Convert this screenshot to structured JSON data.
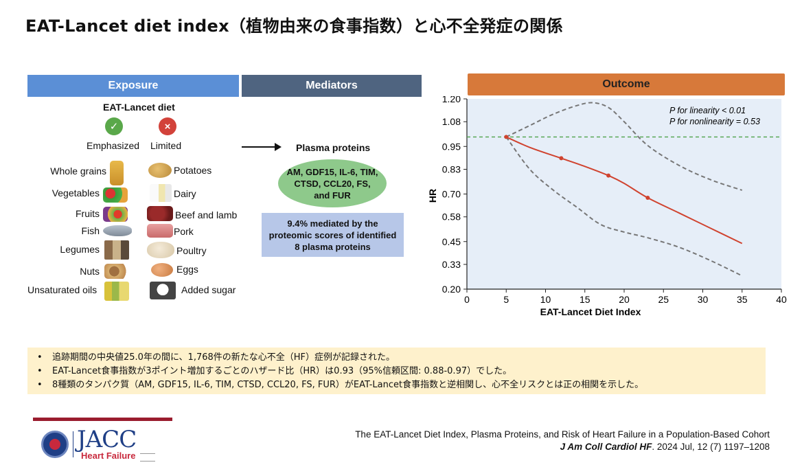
{
  "title": "EAT-Lancet diet index（植物由来の食事指数）と心不全発症の関係",
  "exposure": {
    "header": "Exposure",
    "diet_title": "EAT-Lancet diet",
    "emphasized_label": "Emphasized",
    "limited_label": "Limited",
    "emphasized": [
      "Whole grains",
      "Vegetables",
      "Fruits",
      "Fish",
      "Legumes",
      "Nuts",
      "Unsaturated oils"
    ],
    "limited": [
      "Potatoes",
      "Dairy",
      "Beef and lamb",
      "Pork",
      "Poultry",
      "Eggs",
      "Added sugar"
    ]
  },
  "mediators": {
    "header": "Mediators",
    "plasma_title": "Plasma proteins",
    "proteins_text": "AM, GDF15, IL-6, TIM, CTSD, CCL20, FS, and FUR",
    "mediated_text": "9.4% mediated by the proteomic scores of identified 8 plasma proteins"
  },
  "outcome": {
    "header": "Outcome"
  },
  "chart_data": {
    "type": "line",
    "xlabel": "EAT-Lancet Diet Index",
    "ylabel": "HR",
    "xlim": [
      0,
      40
    ],
    "ylim": [
      0.2,
      1.2
    ],
    "xticks": [
      0,
      5,
      10,
      15,
      20,
      25,
      30,
      35,
      40
    ],
    "yticks": [
      "1.20",
      "1.08",
      "0.95",
      "0.83",
      "0.70",
      "0.58",
      "0.45",
      "0.33",
      "0.20"
    ],
    "reference_line": 1.0,
    "annotations": [
      "P for linearity < 0.01",
      "P for nonlinearity = 0.53"
    ],
    "series": [
      {
        "x": [
          5,
          8,
          12,
          15,
          18,
          20,
          23,
          27,
          31,
          35
        ],
        "y": [
          1.0,
          0.945,
          0.888,
          0.845,
          0.797,
          0.756,
          0.68,
          0.6,
          0.52,
          0.44
        ],
        "markers_x": [
          5,
          12,
          18,
          23
        ]
      },
      {
        "x": [
          5,
          8,
          11,
          14,
          16,
          18,
          20,
          23,
          27,
          31,
          35
        ],
        "y": [
          1.0,
          1.06,
          1.12,
          1.165,
          1.18,
          1.155,
          1.08,
          0.955,
          0.85,
          0.775,
          0.72
        ]
      },
      {
        "x": [
          5,
          8,
          11,
          14,
          17,
          20,
          23,
          27,
          31,
          35
        ],
        "y": [
          1.0,
          0.83,
          0.72,
          0.63,
          0.54,
          0.5,
          0.47,
          0.42,
          0.35,
          0.27
        ]
      }
    ]
  },
  "bullets": [
    "追跡期間の中央値25.0年の間に、1,768件の新たな心不全（HF）症例が記録された。",
    "EAT-Lancet食事指数が3ポイント増加するごとのハザード比（HR）は0.93（95%信頼区間: 0.88-0.97）でした。",
    "8種類のタンパク質（AM, GDF15, IL-6, TIM, CTSD, CCL20, FS, FUR）がEAT-Lancet食事指数と逆相関し、心不全リスクとは正の相関を示した。"
  ],
  "logo": {
    "jacc": "JACC",
    "hf": "Heart Failure"
  },
  "citation": {
    "line1": "The EAT-Lancet Diet Index, Plasma Proteins, and Risk of Heart Failure in a Population-Based Cohort",
    "journal": "J Am Coll Cardiol HF",
    "details": ". 2024 Jul, 12 (7) 1197–1208"
  },
  "colors": {
    "exposure": "#5b8fd6",
    "mediators": "#4f6480",
    "outcome": "#d7793a",
    "line": "#d0432f",
    "ci": "#777777",
    "ref": "#4ea24a",
    "plot_bg": "#e6eef8"
  },
  "icons": [
    "check-icon",
    "x-icon",
    "whole-grains-icon",
    "vegetables-icon",
    "fruits-icon",
    "fish-icon",
    "legumes-icon",
    "nuts-icon",
    "oils-icon",
    "potatoes-icon",
    "dairy-icon",
    "beef-icon",
    "pork-icon",
    "poultry-icon",
    "eggs-icon",
    "sugar-icon"
  ]
}
